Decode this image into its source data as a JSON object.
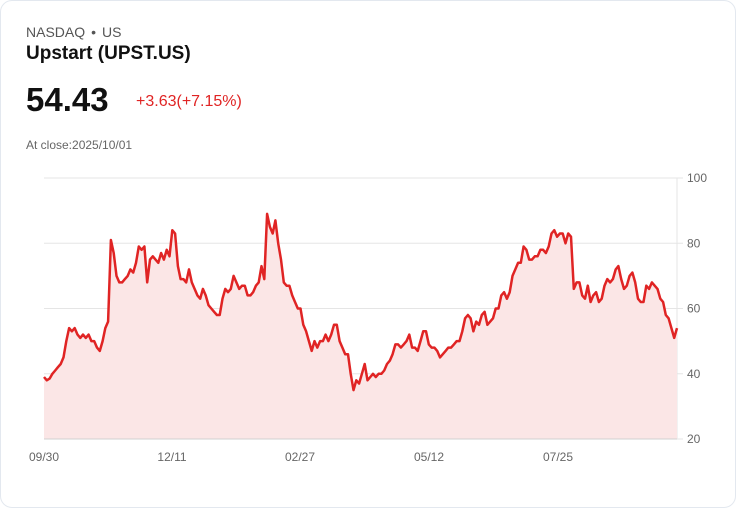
{
  "header": {
    "exchange": "NASDAQ",
    "separator": "•",
    "country": "US",
    "title": "Upstart (UPST.US)",
    "price": "54.43",
    "change": "+3.63(+7.15%)",
    "close_label": "At close:2025/10/01"
  },
  "colors": {
    "line": "#e02424",
    "fill": "#fbe6e6",
    "grid": "#e5e5e5",
    "axis_text": "#666666"
  },
  "chart_data": {
    "type": "area",
    "title": "Upstart (UPST.US)",
    "xlabel": "",
    "ylabel": "",
    "ylim": [
      20,
      100
    ],
    "yticks": [
      100,
      80,
      60,
      40,
      20
    ],
    "xticks": [
      "09/30",
      "12/11",
      "02/27",
      "05/12",
      "07/25"
    ],
    "grid": true,
    "legend": "none",
    "values": [
      39,
      38,
      38.5,
      40,
      41,
      42,
      43,
      45,
      50,
      54,
      53,
      54,
      52,
      51,
      52,
      51,
      52,
      50,
      50,
      48,
      47,
      50,
      54,
      56,
      81,
      77,
      70,
      68,
      68,
      69,
      70,
      72,
      71,
      74,
      79,
      78,
      79,
      68,
      75,
      76,
      75,
      74,
      77,
      75,
      78,
      76,
      84,
      83,
      73,
      69,
      69,
      68,
      72,
      68,
      66,
      64,
      63,
      66,
      64,
      61,
      60,
      59,
      58,
      58,
      63,
      66,
      65,
      66,
      70,
      68,
      66,
      67,
      67,
      64,
      64,
      65,
      67,
      68,
      73,
      69,
      89,
      85,
      83,
      87,
      80,
      75,
      68,
      67,
      67,
      64,
      62,
      60,
      60,
      55,
      53,
      50,
      47,
      50,
      48,
      50,
      50,
      52,
      50,
      52,
      55,
      55,
      50,
      48,
      46,
      46,
      40,
      35,
      38,
      37,
      40,
      43,
      38,
      39,
      40,
      39,
      40,
      40,
      41,
      43,
      44,
      46,
      49,
      49,
      48,
      49,
      50,
      52,
      48,
      48,
      47,
      50,
      53,
      53,
      49,
      48,
      48,
      47,
      45,
      46,
      47,
      48,
      48,
      49,
      50,
      50,
      53,
      57,
      58,
      57,
      53,
      56,
      55,
      58,
      59,
      55,
      56,
      57,
      60,
      60,
      64,
      65,
      63,
      65,
      70,
      72,
      74,
      74,
      79,
      78,
      75,
      75,
      76,
      76,
      78,
      78,
      77,
      79,
      83,
      84,
      82,
      83,
      83,
      80,
      83,
      82,
      66,
      68,
      68,
      64,
      63,
      67,
      62,
      64,
      65,
      62,
      63,
      67,
      69,
      68,
      69,
      72,
      73,
      69,
      66,
      67,
      70,
      71,
      68,
      63,
      62,
      62,
      67,
      66,
      68,
      67,
      66,
      63,
      62,
      58,
      57,
      54,
      51,
      54
    ],
    "x_range": [
      "09/30",
      "10/01"
    ],
    "last_value": 54.43
  }
}
